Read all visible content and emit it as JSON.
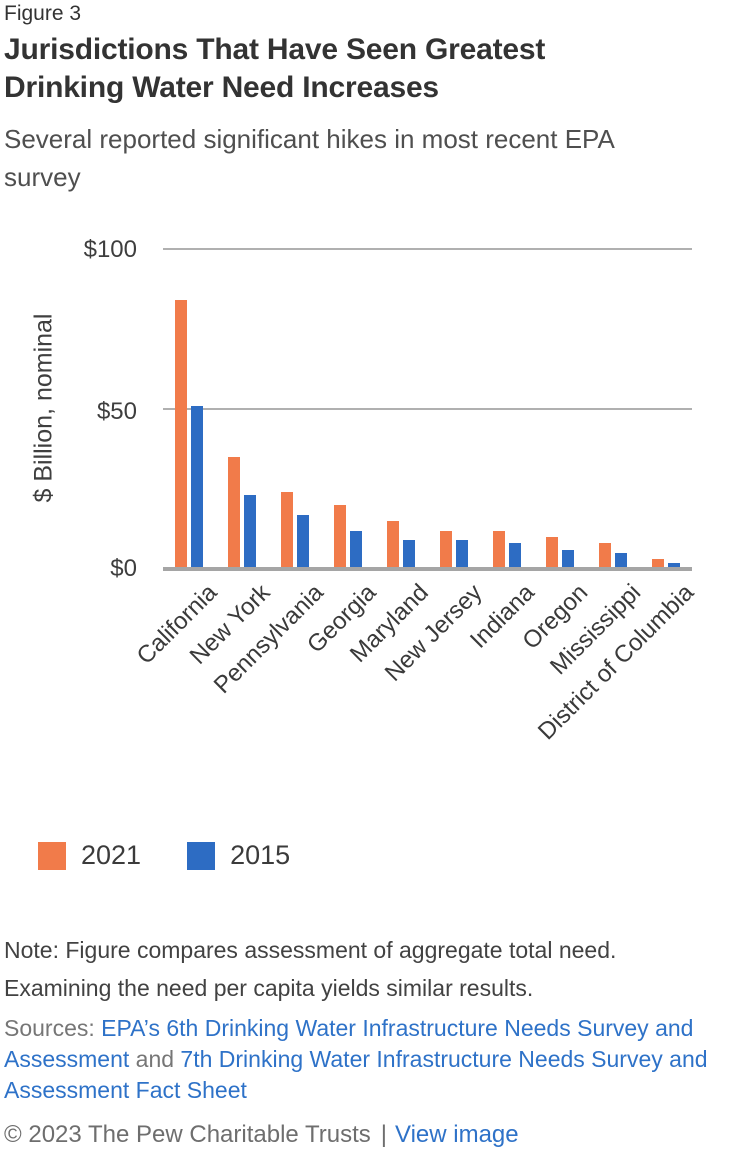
{
  "header": {
    "figure_label": "Figure 3",
    "title": "Jurisdictions That Have Seen Greatest Drinking Water Need Increases",
    "subtitle": "Several reported significant hikes in most recent EPA survey"
  },
  "chart_data": {
    "type": "bar",
    "title": "Jurisdictions That Have Seen Greatest Drinking Water Need Increases",
    "subtitle": "Several reported significant hikes in most recent EPA survey",
    "categories": [
      "California",
      "New York",
      "Pennsylvania",
      "Georgia",
      "Maryland",
      "New Jersey",
      "Indiana",
      "Oregon",
      "Mississippi",
      "District of Columbia"
    ],
    "series": [
      {
        "name": "2021",
        "color": "#F17B4A",
        "values": [
          84,
          35,
          24,
          20,
          15,
          12,
          12,
          10,
          8,
          3
        ]
      },
      {
        "name": "2015",
        "color": "#2D6CC3",
        "values": [
          51,
          23,
          17,
          12,
          9,
          9,
          8,
          6,
          5,
          2
        ]
      }
    ],
    "xlabel": "",
    "ylabel": "$ Billion, nominal",
    "ylim": [
      0,
      100
    ],
    "yticks": [
      {
        "value": 100,
        "label": "$100"
      },
      {
        "value": 50,
        "label": "$50"
      },
      {
        "value": 0,
        "label": "$0"
      }
    ],
    "grid": "horizontal gridlines at 0, 50, 100",
    "legend_position": "bottom-left",
    "x_tick_rotation_deg": 45
  },
  "note": {
    "text": "Note: Figure compares assessment of aggregate total need. Examining the need per capita yields similar results."
  },
  "sources": {
    "prefix": "Sources: ",
    "link1": "EPA’s 6th Drinking Water Infrastructure Needs Survey and Assessment",
    "connector": " and ",
    "link2": "7th Drinking Water Infrastructure Needs Survey and Assessment Fact Sheet"
  },
  "footer": {
    "copyright": "© 2023 The Pew Charitable Trusts",
    "separator": "|",
    "view_image_label": "View image"
  },
  "colors": {
    "series_2021": "#F17B4A",
    "series_2015": "#2D6CC3",
    "link": "#2E72C8",
    "gridline": "#B0B0B0",
    "baseline": "#A5A5A5",
    "title_text": "#333333",
    "body_text": "#424242",
    "muted_text": "#767676"
  }
}
